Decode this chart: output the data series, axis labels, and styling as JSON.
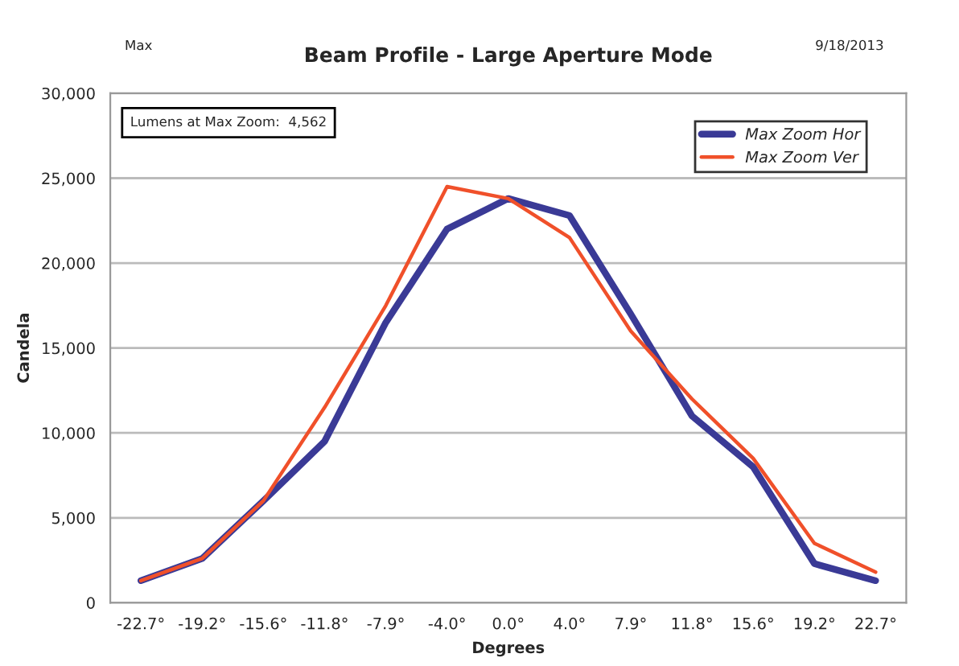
{
  "chart_data": {
    "type": "line",
    "title": "Beam Profile - Large Aperture Mode",
    "xlabel": "Degrees",
    "ylabel": "Candela",
    "annotations": [
      "Max",
      "9/18/2013",
      "Lumens at Max Zoom:  4,562"
    ],
    "categories": [
      "-22.7°",
      "-19.2°",
      "-15.6°",
      "-11.8°",
      "-7.9°",
      "-4.0°",
      "0.0°",
      "4.0°",
      "7.9°",
      "11.8°",
      "15.6°",
      "19.2°",
      "22.7°"
    ],
    "series": [
      {
        "name": "Max Zoom Hor",
        "color": "#3a3a96",
        "values": [
          1300,
          2600,
          6000,
          9500,
          16500,
          22000,
          23800,
          22800,
          17000,
          11000,
          8000,
          2300,
          1300
        ]
      },
      {
        "name": "Max Zoom Ver",
        "color": "#f0502a",
        "values": [
          1300,
          2600,
          6000,
          11500,
          17500,
          24500,
          23800,
          21500,
          16000,
          12000,
          8500,
          3500,
          1800
        ]
      }
    ],
    "ylim": [
      0,
      30000
    ],
    "yticks": [
      {
        "value": 0,
        "label": "0"
      },
      {
        "value": 5000,
        "label": "5,000"
      },
      {
        "value": 10000,
        "label": "10,000"
      },
      {
        "value": 15000,
        "label": "15,000"
      },
      {
        "value": 20000,
        "label": "20,000"
      },
      {
        "value": 25000,
        "label": "25,000"
      },
      {
        "value": 30000,
        "label": "30,000"
      }
    ],
    "grid": "y",
    "legend": "top right",
    "marker": "none",
    "line_style": "solid"
  }
}
